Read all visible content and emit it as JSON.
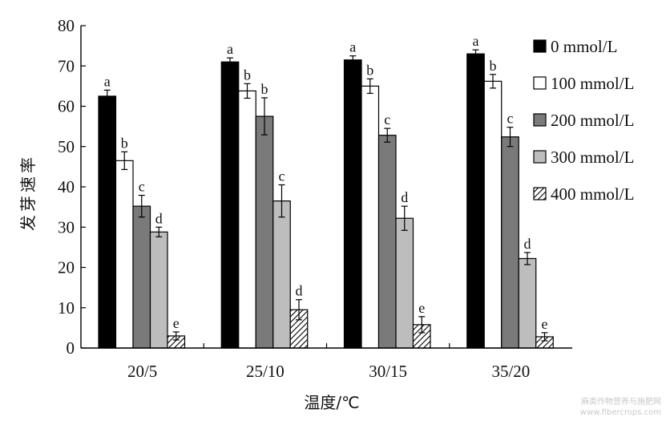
{
  "chart_data": {
    "type": "bar",
    "title": "",
    "xlabel": "温度/℃",
    "ylabel": "发芽速率",
    "ylim": [
      0,
      80
    ],
    "yticks": [
      0,
      10,
      20,
      30,
      40,
      50,
      60,
      70,
      80
    ],
    "categories": [
      "20/5",
      "25/10",
      "30/15",
      "35/20"
    ],
    "legend_position": "right",
    "series": [
      {
        "name": "0 mmol/L",
        "color": "#000000",
        "pattern": "solid",
        "values": [
          62.5,
          71.0,
          71.5,
          73.0
        ],
        "errors": [
          1.5,
          1.0,
          1.0,
          1.0
        ],
        "labels": [
          "a",
          "a",
          "a",
          "a"
        ]
      },
      {
        "name": "100 mmol/L",
        "color": "#ffffff",
        "pattern": "solid",
        "values": [
          46.5,
          63.8,
          65.0,
          66.2
        ],
        "errors": [
          2.2,
          1.8,
          1.8,
          1.7
        ],
        "labels": [
          "b",
          "b",
          "b",
          "b"
        ]
      },
      {
        "name": "200 mmol/L",
        "color": "#7a7a7a",
        "pattern": "solid",
        "values": [
          35.2,
          57.5,
          52.8,
          52.4
        ],
        "errors": [
          2.7,
          4.6,
          1.7,
          2.4
        ],
        "labels": [
          "c",
          "b",
          "c",
          "c"
        ]
      },
      {
        "name": "300 mmol/L",
        "color": "#bdbdbd",
        "pattern": "solid",
        "values": [
          28.8,
          36.5,
          32.2,
          22.2
        ],
        "errors": [
          1.2,
          4.0,
          3.0,
          1.5
        ],
        "labels": [
          "d",
          "c",
          "d",
          "d"
        ]
      },
      {
        "name": "400 mmol/L",
        "color": "#ffffff",
        "pattern": "hatch",
        "values": [
          3.0,
          9.5,
          5.8,
          2.8
        ],
        "errors": [
          1.0,
          2.5,
          2.0,
          1.0
        ],
        "labels": [
          "e",
          "d",
          "e",
          "e"
        ]
      }
    ]
  },
  "watermark": {
    "line1": "麻类作物营养与施肥网",
    "line2": "www.fibercrops.com"
  }
}
